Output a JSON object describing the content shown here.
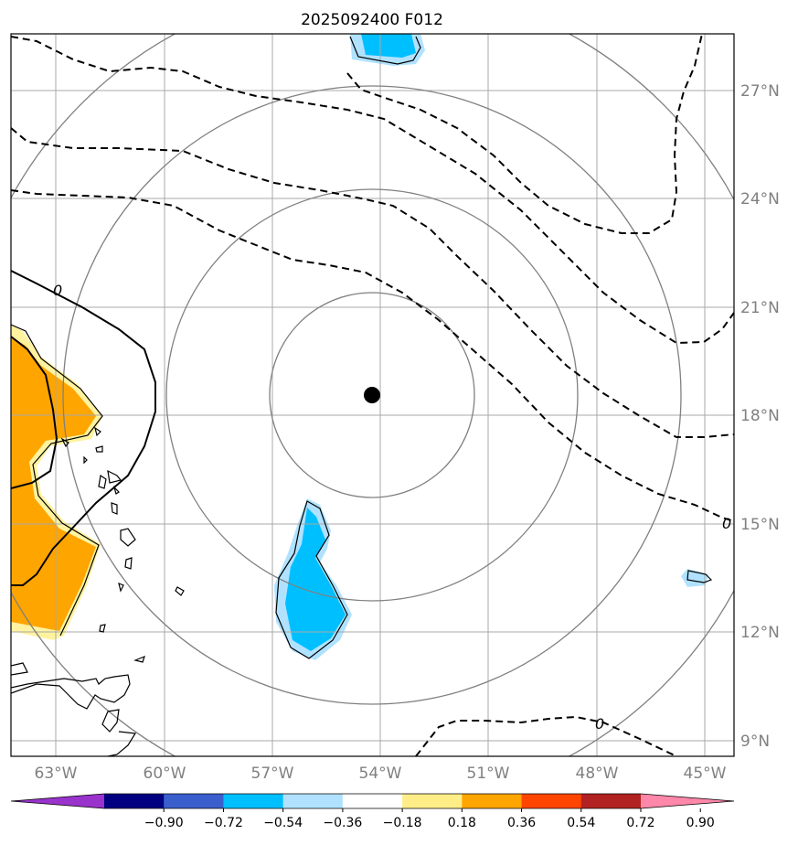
{
  "title": "2025092400 F012",
  "map": {
    "lon_labels": [
      "63°W",
      "60°W",
      "57°W",
      "54°W",
      "51°W",
      "48°W",
      "45°W"
    ],
    "lat_labels": [
      "27°N",
      "24°N",
      "21°N",
      "18°N",
      "15°N",
      "12°N",
      "9°N"
    ],
    "contour_label": "0",
    "storm_center": {
      "lon": "54.0°W",
      "lat": "18.5°N"
    },
    "range_rings_count": 4,
    "colors": {
      "grid": "#a9a9a9",
      "ring": "#808080",
      "coast": "#000000",
      "contour": "#000000"
    }
  },
  "colorbar": {
    "ticks": [
      "−0.90",
      "−0.72",
      "−0.54",
      "−0.36",
      "−0.18",
      "0.18",
      "0.36",
      "0.54",
      "0.72",
      "0.90"
    ],
    "colors": [
      "#9933cc",
      "#000080",
      "#3a5fcd",
      "#00bfff",
      "#b0e2ff",
      "#ffffff",
      "#ffee88",
      "#ffa500",
      "#ff4500",
      "#b22222",
      "#ff88aa"
    ]
  }
}
